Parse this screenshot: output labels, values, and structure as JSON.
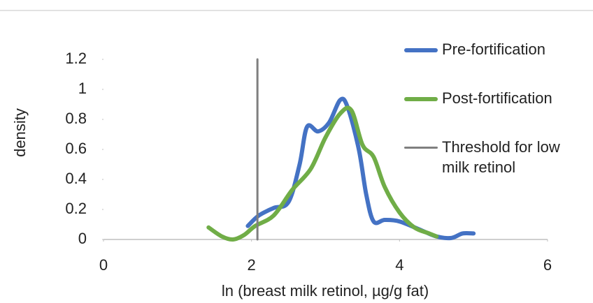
{
  "chart_data": {
    "type": "line",
    "x_label": "ln (breast milk retinol, µg/g fat)",
    "y_label": "density",
    "xlim": [
      0,
      6
    ],
    "xticks": [
      0,
      2,
      4,
      6
    ],
    "ylim": [
      0,
      1.2
    ],
    "yticks": [
      0,
      0.2,
      0.4,
      0.6,
      0.8,
      1,
      1.2
    ],
    "grid": false,
    "series": [
      {
        "name": "Pre-fortification",
        "color": "#4472c4",
        "x": [
          1.95,
          2.1,
          2.3,
          2.5,
          2.65,
          2.75,
          2.9,
          3.05,
          3.2,
          3.3,
          3.45,
          3.55,
          3.65,
          3.8,
          4.0,
          4.3,
          4.5,
          4.7,
          4.85,
          5.0
        ],
        "values": [
          0.09,
          0.16,
          0.21,
          0.25,
          0.5,
          0.75,
          0.72,
          0.78,
          0.93,
          0.88,
          0.6,
          0.3,
          0.12,
          0.13,
          0.12,
          0.06,
          0.02,
          0.01,
          0.04,
          0.04
        ]
      },
      {
        "name": "Post-fortification",
        "color": "#70ad47",
        "x": [
          1.42,
          1.6,
          1.75,
          1.9,
          2.05,
          2.3,
          2.55,
          2.8,
          3.0,
          3.2,
          3.35,
          3.5,
          3.65,
          3.8,
          4.0,
          4.2,
          4.4,
          4.5
        ],
        "values": [
          0.08,
          0.02,
          0.0,
          0.03,
          0.09,
          0.16,
          0.33,
          0.47,
          0.68,
          0.84,
          0.86,
          0.63,
          0.55,
          0.35,
          0.18,
          0.08,
          0.04,
          0.02
        ]
      },
      {
        "name": "Threshold for low milk retinol",
        "color": "#7f7f7f",
        "x": [
          2.08,
          2.08
        ],
        "values": [
          0,
          1.2
        ]
      }
    ]
  }
}
